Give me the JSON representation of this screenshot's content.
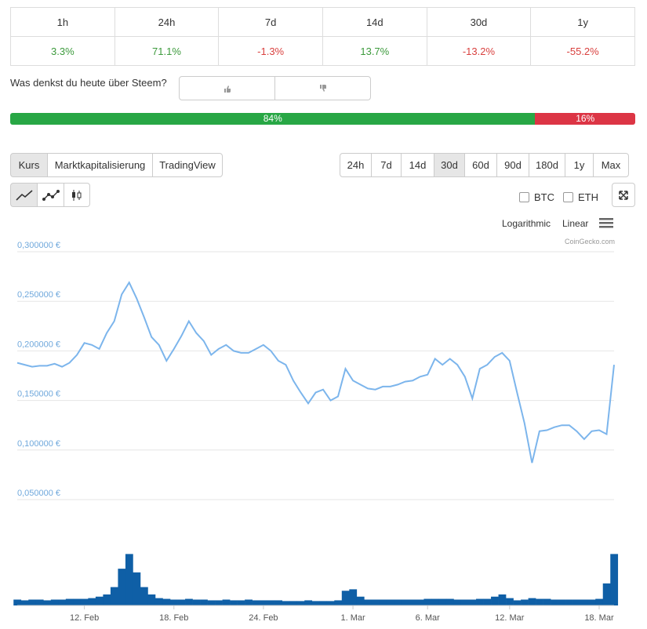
{
  "periods": {
    "headers": [
      "1h",
      "24h",
      "7d",
      "14d",
      "30d",
      "1y"
    ],
    "changes": [
      "3.3%",
      "71.1%",
      "-1.3%",
      "13.7%",
      "-13.2%",
      "-55.2%"
    ]
  },
  "sentiment": {
    "question": "Was denkst du heute über Steem?",
    "values": [
      84,
      16
    ],
    "value_labels": [
      "84%",
      "16%"
    ]
  },
  "tabs": [
    "Kurs",
    "Marktkapitalisierung",
    "TradingView"
  ],
  "ranges": [
    "24h",
    "7d",
    "14d",
    "30d",
    "60d",
    "90d",
    "180d",
    "1y",
    "Max"
  ],
  "compare": [
    "BTC",
    "ETH"
  ],
  "scales": [
    "Logarithmic",
    "Linear"
  ],
  "credit": "CoinGecko.com",
  "chart_data": {
    "type": "line",
    "x": [
      null,
      null,
      null,
      null,
      null,
      null,
      null,
      null,
      null,
      "12. Feb",
      null,
      null,
      null,
      null,
      null,
      null,
      null,
      null,
      null,
      null,
      null,
      "18. Feb",
      null,
      null,
      null,
      null,
      null,
      null,
      null,
      null,
      null,
      null,
      null,
      "24. Feb",
      null,
      null,
      null,
      null,
      null,
      null,
      null,
      null,
      null,
      null,
      null,
      "1. Mar",
      null,
      null,
      null,
      null,
      null,
      null,
      null,
      null,
      null,
      "6. Mar",
      null,
      null,
      null,
      null,
      null,
      null,
      null,
      null,
      null,
      null,
      "12. Mar",
      null,
      null,
      null,
      null,
      null,
      null,
      null,
      null,
      null,
      null,
      null,
      "18. Mar",
      null,
      null
    ],
    "series": [
      {
        "color": "#7cb5ec",
        "values": [
          0.188,
          0.186,
          0.184,
          0.185,
          0.185,
          0.187,
          0.184,
          0.188,
          0.196,
          0.208,
          0.206,
          0.202,
          0.218,
          0.23,
          0.257,
          0.269,
          0.253,
          0.234,
          0.214,
          0.206,
          0.19,
          0.202,
          0.215,
          0.23,
          0.218,
          0.21,
          0.196,
          0.202,
          0.206,
          0.2,
          0.198,
          0.198,
          0.202,
          0.206,
          0.2,
          0.19,
          0.186,
          0.17,
          0.158,
          0.147,
          0.158,
          0.161,
          0.15,
          0.154,
          0.182,
          0.17,
          0.166,
          0.162,
          0.161,
          0.164,
          0.164,
          0.166,
          0.169,
          0.17,
          0.174,
          0.176,
          0.192,
          0.186,
          0.192,
          0.186,
          0.174,
          0.152,
          0.182,
          0.186,
          0.194,
          0.198,
          0.19,
          0.158,
          0.127,
          0.087,
          0.119,
          0.12,
          0.123,
          0.125,
          0.125,
          0.119,
          0.111,
          0.119,
          0.12,
          0.116,
          0.186
        ]
      },
      {
        "color": "#0f5fa6",
        "axis": "y2",
        "values": [
          8,
          7,
          8,
          8,
          7,
          8,
          8,
          9,
          9,
          9,
          10,
          12,
          15,
          25,
          50,
          70,
          45,
          25,
          15,
          10,
          9,
          8,
          8,
          9,
          8,
          8,
          7,
          7,
          8,
          7,
          7,
          8,
          7,
          7,
          7,
          7,
          6,
          6,
          6,
          7,
          6,
          6,
          6,
          7,
          20,
          22,
          12,
          8,
          8,
          8,
          8,
          8,
          8,
          8,
          8,
          9,
          9,
          9,
          9,
          8,
          8,
          8,
          9,
          9,
          12,
          15,
          10,
          7,
          8,
          10,
          9,
          9,
          8,
          8,
          8,
          8,
          8,
          8,
          9,
          30,
          70
        ]
      }
    ],
    "ylim": [
      0.05,
      0.3
    ],
    "yticks": [
      {
        "value": 0.05,
        "label": "0,050000 €"
      },
      {
        "value": 0.1,
        "label": "0,100000 €"
      },
      {
        "value": 0.15,
        "label": "0,150000 €"
      },
      {
        "value": 0.2,
        "label": "0,200000 €"
      },
      {
        "value": 0.25,
        "label": "0,250000 €"
      },
      {
        "value": 0.3,
        "label": "0,300000 €"
      }
    ],
    "y2lim": [
      0,
      80
    ],
    "grid": true
  }
}
